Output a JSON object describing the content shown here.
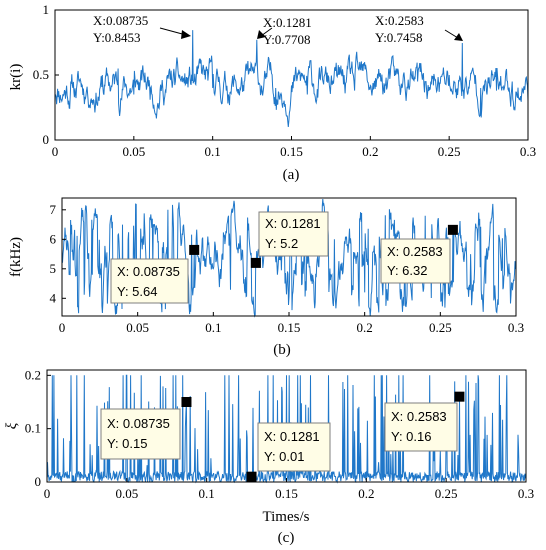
{
  "chart_data": [
    {
      "type": "line",
      "caption": "(a)",
      "ylabel": "kr(i)",
      "xlabel": "",
      "xlim": [
        0,
        0.3
      ],
      "ylim": [
        0,
        1
      ],
      "xticks": [
        "0",
        "0.05",
        "0.1",
        "0.15",
        "0.2",
        "0.25",
        "0.3"
      ],
      "yticks": [
        "0",
        "0.5",
        "1"
      ],
      "color": "#1f77c9",
      "signal": {
        "mean": 0.42,
        "low": 0.18,
        "high": 0.72,
        "seed": 11
      },
      "series": [
        {
          "x": [
            0,
            0.01,
            0.02,
            0.03,
            0.04,
            0.05,
            0.06,
            0.07,
            0.08,
            0.08735,
            0.1,
            0.11,
            0.12,
            0.1281,
            0.14,
            0.15,
            0.16,
            0.17,
            0.18,
            0.19,
            0.2,
            0.21,
            0.22,
            0.23,
            0.24,
            0.25,
            0.2583,
            0.27,
            0.28,
            0.29,
            0.3
          ],
          "y": [
            0.35,
            0.45,
            0.38,
            0.5,
            0.55,
            0.35,
            0.42,
            0.38,
            0.45,
            0.8453,
            0.4,
            0.35,
            0.45,
            0.7708,
            0.4,
            0.42,
            0.35,
            0.45,
            0.5,
            0.38,
            0.42,
            0.48,
            0.4,
            0.45,
            0.42,
            0.5,
            0.7458,
            0.4,
            0.38,
            0.45,
            0.3
          ]
        }
      ],
      "annotations": [
        {
          "x": 0.08735,
          "y": 0.8453,
          "line1": "X:0.08735",
          "line2": "Y:0.8453"
        },
        {
          "x": 0.1281,
          "y": 0.7708,
          "line1": "X:0.1281",
          "line2": "Y:0.7708"
        },
        {
          "x": 0.2583,
          "y": 0.7458,
          "line1": "X:0.2583",
          "line2": "Y:0.7458"
        }
      ]
    },
    {
      "type": "line",
      "caption": "(b)",
      "ylabel": "f(kHz)",
      "xlabel": "",
      "xlim": [
        0,
        0.3
      ],
      "ylim": [
        3.4,
        7.4
      ],
      "xticks": [
        "0",
        "0.05",
        "0.1",
        "0.15",
        "0.2",
        "0.25",
        "0.3"
      ],
      "yticks": [
        "4",
        "5",
        "6",
        "7"
      ],
      "color": "#1f77c9",
      "signal": {
        "mean": 5.3,
        "low": 3.6,
        "high": 7.2,
        "seed": 23
      },
      "series": [
        {
          "x": [
            0,
            0.02,
            0.04,
            0.06,
            0.07,
            0.08735,
            0.1,
            0.11,
            0.12,
            0.1281,
            0.14,
            0.16,
            0.18,
            0.2,
            0.22,
            0.24,
            0.25,
            0.2583,
            0.27,
            0.28,
            0.3
          ],
          "y": [
            5.5,
            4.8,
            6.5,
            5.0,
            7.0,
            5.64,
            5.0,
            6.8,
            4.5,
            5.2,
            6.5,
            5.5,
            6.0,
            4.2,
            5.8,
            6.8,
            5.0,
            6.32,
            5.5,
            4.5,
            5.2
          ]
        }
      ],
      "datatips": [
        {
          "x": 0.08735,
          "y": 5.64,
          "line1": "X: 0.08735",
          "line2": "Y: 5.64"
        },
        {
          "x": 0.1281,
          "y": 5.2,
          "line1": "X: 0.1281",
          "line2": "Y: 5.2"
        },
        {
          "x": 0.2583,
          "y": 6.32,
          "line1": "X: 0.2583",
          "line2": "Y: 6.32"
        }
      ]
    },
    {
      "type": "line",
      "caption": "(c)",
      "ylabel": "ξ",
      "xlabel": "Times/s",
      "xlim": [
        0,
        0.3
      ],
      "ylim": [
        0,
        0.21
      ],
      "xticks": [
        "0",
        "0.05",
        "0.1",
        "0.15",
        "0.2",
        "0.25",
        "0.3"
      ],
      "yticks": [
        "0",
        "0.1",
        "0.2"
      ],
      "color": "#1f77c9",
      "signal": {
        "mean": 0.01,
        "low": 0.0,
        "high": 0.2,
        "seed": 37
      },
      "series": [
        {
          "x": [
            0,
            0.05,
            0.08735,
            0.1,
            0.1281,
            0.15,
            0.2,
            0.25,
            0.2583,
            0.3
          ],
          "y": [
            0.01,
            0.2,
            0.15,
            0.02,
            0.01,
            0.2,
            0.02,
            0.1,
            0.16,
            0.01
          ]
        }
      ],
      "datatips": [
        {
          "x": 0.08735,
          "y": 0.15,
          "line1": "X: 0.08735",
          "line2": "Y: 0.15"
        },
        {
          "x": 0.1281,
          "y": 0.01,
          "line1": "X: 0.1281",
          "line2": "Y: 0.01"
        },
        {
          "x": 0.2583,
          "y": 0.16,
          "line1": "X: 0.2583",
          "line2": "Y: 0.16"
        }
      ]
    }
  ]
}
